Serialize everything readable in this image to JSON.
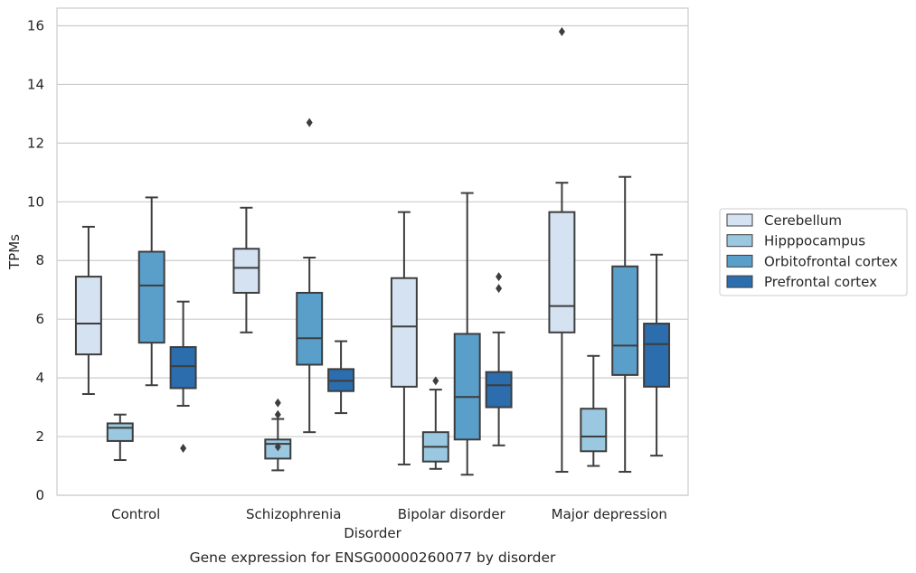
{
  "chart_data": {
    "type": "box",
    "title": "",
    "caption": "Gene expression for ENSG00000260077 by disorder",
    "xlabel": "Disorder",
    "ylabel": "TPMs",
    "ylim": [
      0,
      16.6
    ],
    "yticks": [
      0,
      2,
      4,
      6,
      8,
      10,
      12,
      14,
      16
    ],
    "grid": "horizontal",
    "legend_position": "right",
    "categories": [
      "Control",
      "Schizophrenia",
      "Bipolar disorder",
      "Major depression"
    ],
    "series": [
      {
        "name": "Cerebellum",
        "color": "#d4e2f2",
        "boxes": [
          {
            "whisker_low": 3.45,
            "q1": 4.8,
            "median": 5.85,
            "q3": 7.45,
            "whisker_high": 9.15,
            "outliers": []
          },
          {
            "whisker_low": 5.55,
            "q1": 6.9,
            "median": 7.75,
            "q3": 8.4,
            "whisker_high": 9.8,
            "outliers": []
          },
          {
            "whisker_low": 1.05,
            "q1": 3.7,
            "median": 5.75,
            "q3": 7.4,
            "whisker_high": 9.65,
            "outliers": []
          },
          {
            "whisker_low": 0.8,
            "q1": 5.55,
            "median": 6.45,
            "q3": 9.65,
            "whisker_high": 10.65,
            "outliers": [
              15.8
            ]
          }
        ]
      },
      {
        "name": "Hipppocampus",
        "color": "#9ac8e0",
        "boxes": [
          {
            "whisker_low": 1.2,
            "q1": 1.85,
            "median": 2.3,
            "q3": 2.45,
            "whisker_high": 2.75,
            "outliers": []
          },
          {
            "whisker_low": 0.85,
            "q1": 1.25,
            "median": 1.75,
            "q3": 1.9,
            "whisker_high": 2.6,
            "outliers": [
              1.65,
              2.75,
              3.15
            ]
          },
          {
            "whisker_low": 0.9,
            "q1": 1.15,
            "median": 1.65,
            "q3": 2.15,
            "whisker_high": 3.6,
            "outliers": [
              3.9
            ]
          },
          {
            "whisker_low": 1.0,
            "q1": 1.5,
            "median": 2.0,
            "q3": 2.95,
            "whisker_high": 4.75,
            "outliers": []
          }
        ]
      },
      {
        "name": "Orbitofrontal cortex",
        "color": "#5a9fc9",
        "boxes": [
          {
            "whisker_low": 3.75,
            "q1": 5.2,
            "median": 7.15,
            "q3": 8.3,
            "whisker_high": 10.15,
            "outliers": []
          },
          {
            "whisker_low": 2.15,
            "q1": 4.45,
            "median": 5.35,
            "q3": 6.9,
            "whisker_high": 8.1,
            "outliers": [
              12.7
            ]
          },
          {
            "whisker_low": 0.7,
            "q1": 1.9,
            "median": 3.35,
            "q3": 5.5,
            "whisker_high": 10.3,
            "outliers": []
          },
          {
            "whisker_low": 0.8,
            "q1": 4.1,
            "median": 5.1,
            "q3": 7.8,
            "whisker_high": 10.85,
            "outliers": []
          }
        ]
      },
      {
        "name": "Prefrontal cortex",
        "color": "#2c6dad",
        "boxes": [
          {
            "whisker_low": 3.05,
            "q1": 3.65,
            "median": 4.4,
            "q3": 5.05,
            "whisker_high": 6.6,
            "outliers": [
              1.6
            ]
          },
          {
            "whisker_low": 2.8,
            "q1": 3.55,
            "median": 3.9,
            "q3": 4.3,
            "whisker_high": 5.25,
            "outliers": []
          },
          {
            "whisker_low": 1.7,
            "q1": 3.0,
            "median": 3.75,
            "q3": 4.2,
            "whisker_high": 5.55,
            "outliers": [
              7.05,
              7.45
            ]
          },
          {
            "whisker_low": 1.35,
            "q1": 3.7,
            "median": 5.15,
            "q3": 5.85,
            "whisker_high": 8.2,
            "outliers": []
          }
        ]
      }
    ]
  }
}
